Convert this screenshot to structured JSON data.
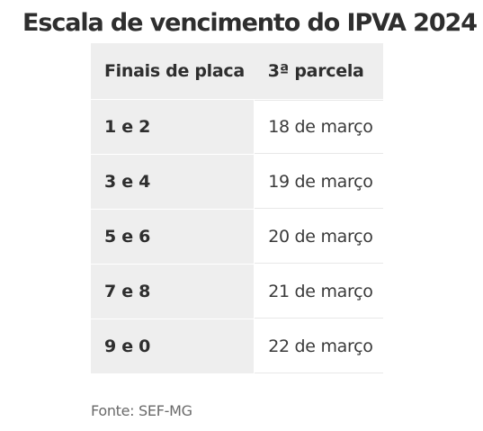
{
  "title": "Escala de vencimento do IPVA 2024",
  "table": {
    "headers": [
      "Finais de placa",
      "3ª parcela"
    ],
    "rows": [
      {
        "plates": "1 e 2",
        "date": "18 de março"
      },
      {
        "plates": "3 e 4",
        "date": "19 de março"
      },
      {
        "plates": "5 e 6",
        "date": "20 de março"
      },
      {
        "plates": "7 e 8",
        "date": "21 de março"
      },
      {
        "plates": "9 e 0",
        "date": "22 de março"
      }
    ]
  },
  "source": "Fonte: SEF-MG",
  "colors": {
    "header_bg": "#eeeeee",
    "text": "#2e2e2e",
    "source_text": "#6a6a6a"
  }
}
